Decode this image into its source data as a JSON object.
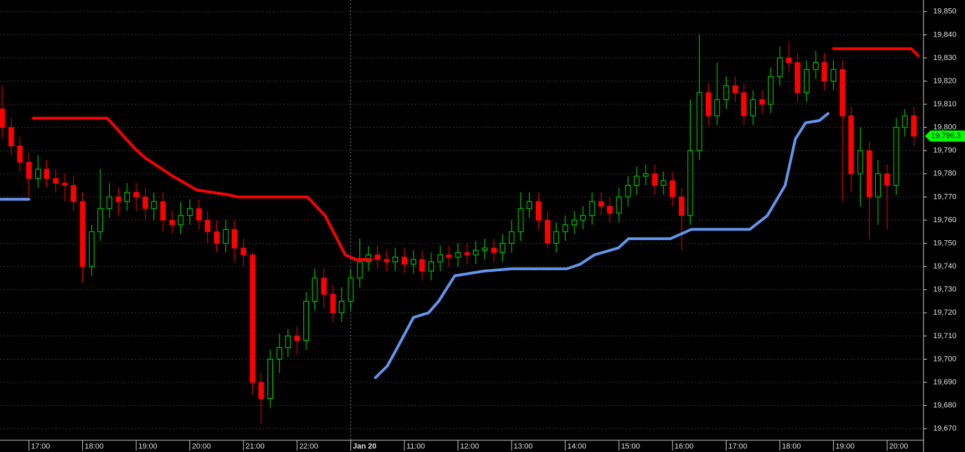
{
  "chart_data": {
    "type": "candlestick",
    "xlim": [
      0.46,
      17.68
    ],
    "ylim": [
      19665,
      19855
    ],
    "xticks": [
      {
        "value": 1,
        "label": "17:00"
      },
      {
        "value": 2,
        "label": "18:00"
      },
      {
        "value": 3,
        "label": "19:00"
      },
      {
        "value": 4,
        "label": "20:00"
      },
      {
        "value": 5,
        "label": "21:00"
      },
      {
        "value": 6,
        "label": "22:00"
      },
      {
        "value": 7,
        "label": "Jan 20"
      },
      {
        "value": 8,
        "label": "11:00"
      },
      {
        "value": 9,
        "label": "12:00"
      },
      {
        "value": 10,
        "label": "13:00"
      },
      {
        "value": 11,
        "label": "14:00"
      },
      {
        "value": 12,
        "label": "15:00"
      },
      {
        "value": 13,
        "label": "16:00"
      },
      {
        "value": 14,
        "label": "17:00"
      },
      {
        "value": 15,
        "label": "18:00"
      },
      {
        "value": 16,
        "label": "19:00"
      },
      {
        "value": 17,
        "label": "20:00"
      }
    ],
    "yticks": [
      {
        "value": 19670,
        "label": "19,670"
      },
      {
        "value": 19680,
        "label": "19,680"
      },
      {
        "value": 19690,
        "label": "19,690"
      },
      {
        "value": 19700,
        "label": "19,700"
      },
      {
        "value": 19710,
        "label": "19,710"
      },
      {
        "value": 19720,
        "label": "19,720"
      },
      {
        "value": 19730,
        "label": "19,730"
      },
      {
        "value": 19740,
        "label": "19,740"
      },
      {
        "value": 19750,
        "label": "19,750"
      },
      {
        "value": 19760,
        "label": "19,760"
      },
      {
        "value": 19770,
        "label": "19,770"
      },
      {
        "value": 19780,
        "label": "19,780"
      },
      {
        "value": 19790,
        "label": "19,790"
      },
      {
        "value": 19800,
        "label": "19,800"
      },
      {
        "value": 19810,
        "label": "19,810"
      },
      {
        "value": 19820,
        "label": "19,820"
      },
      {
        "value": 19830,
        "label": "19,830"
      },
      {
        "value": 19840,
        "label": "19,840"
      },
      {
        "value": 19850,
        "label": "19,850"
      }
    ],
    "grid": true,
    "session_divider": 7,
    "up_color": "#00e000",
    "down_color": "#ff0000",
    "x": [
      0.5,
      0.67,
      0.83,
      1,
      1.17,
      1.33,
      1.5,
      1.67,
      1.83,
      2,
      2.17,
      2.33,
      2.5,
      2.67,
      2.83,
      3,
      3.17,
      3.33,
      3.5,
      3.67,
      3.83,
      4,
      4.17,
      4.33,
      4.5,
      4.67,
      4.83,
      5,
      5.17,
      5.33,
      5.5,
      5.67,
      5.83,
      6,
      6.17,
      6.33,
      6.5,
      6.67,
      6.83,
      7,
      7.17,
      7.33,
      7.5,
      7.67,
      7.83,
      8,
      8.17,
      8.33,
      8.5,
      8.67,
      8.83,
      9,
      9.17,
      9.33,
      9.5,
      9.67,
      9.83,
      10,
      10.17,
      10.33,
      10.5,
      10.67,
      10.83,
      11,
      11.17,
      11.33,
      11.5,
      11.67,
      11.83,
      12,
      12.17,
      12.33,
      12.5,
      12.67,
      12.83,
      13,
      13.17,
      13.33,
      13.5,
      13.67,
      13.83,
      14,
      14.17,
      14.33,
      14.5,
      14.67,
      14.83,
      15,
      15.17,
      15.33,
      15.5,
      15.67,
      15.83,
      16,
      16.17,
      16.33,
      16.5,
      16.67,
      16.83,
      17,
      17.17,
      17.33,
      17.5
    ],
    "open": [
      19808,
      19800,
      19792,
      19785,
      19778,
      19782,
      19778,
      19776,
      19775,
      19768,
      19740,
      19755,
      19765,
      19770,
      19768,
      19772,
      19770,
      19765,
      19768,
      19760,
      19758,
      19762,
      19765,
      19760,
      19755,
      19750,
      19756,
      19748,
      19745,
      19690,
      19683,
      19700,
      19705,
      19710,
      19708,
      19725,
      19735,
      19728,
      19720,
      19725,
      19735,
      19742,
      19745,
      19743,
      19742,
      19744,
      19741,
      19743,
      19738,
      19742,
      19745,
      19744,
      19746,
      19745,
      19747,
      19748,
      19746,
      19750,
      19755,
      19765,
      19768,
      19760,
      19750,
      19755,
      19758,
      19760,
      19762,
      19768,
      19766,
      19763,
      19770,
      19775,
      19779,
      19780,
      19775,
      19777,
      19770,
      19762,
      19790,
      19815,
      19805,
      19812,
      19818,
      19815,
      19805,
      19812,
      19810,
      19822,
      19830,
      19828,
      19815,
      19825,
      19828,
      19820,
      19825,
      19805,
      19780,
      19790,
      19770,
      19780,
      19775,
      19800,
      19805
    ],
    "high": [
      19818,
      19804,
      19796,
      19789,
      19788,
      19786,
      19782,
      19780,
      19779,
      19772,
      19758,
      19782,
      19776,
      19774,
      19776,
      19776,
      19774,
      19772,
      19772,
      19764,
      19768,
      19769,
      19769,
      19764,
      19760,
      19760,
      19760,
      19752,
      19746,
      19694,
      19704,
      19711,
      19713,
      19714,
      19729,
      19739,
      19739,
      19732,
      19731,
      19739,
      19752,
      19749,
      19749,
      19747,
      19748,
      19748,
      19747,
      19747,
      19746,
      19749,
      19749,
      19750,
      19750,
      19751,
      19752,
      19752,
      19754,
      19760,
      19772,
      19772,
      19772,
      19764,
      19759,
      19762,
      19764,
      19766,
      19772,
      19772,
      19770,
      19774,
      19779,
      19783,
      19784,
      19784,
      19781,
      19781,
      19774,
      19812,
      19840,
      19819,
      19828,
      19822,
      19822,
      19819,
      19816,
      19816,
      19826,
      19835,
      19837,
      19832,
      19829,
      19833,
      19832,
      19829,
      19829,
      19809,
      19800,
      19794,
      19786,
      19784,
      19804,
      19808,
      19809
    ],
    "low": [
      19795,
      19788,
      19781,
      19770,
      19774,
      19774,
      19772,
      19768,
      19764,
      19733,
      19736,
      19751,
      19761,
      19762,
      19764,
      19764,
      19760,
      19760,
      19755,
      19754,
      19754,
      19758,
      19756,
      19750,
      19746,
      19746,
      19742,
      19740,
      19685,
      19672,
      19679,
      19694,
      19701,
      19702,
      19704,
      19721,
      19722,
      19716,
      19716,
      19721,
      19731,
      19738,
      19739,
      19738,
      19738,
      19737,
      19737,
      19734,
      19734,
      19738,
      19740,
      19740,
      19741,
      19741,
      19743,
      19742,
      19742,
      19746,
      19751,
      19761,
      19756,
      19748,
      19746,
      19751,
      19754,
      19756,
      19758,
      19762,
      19759,
      19759,
      19766,
      19771,
      19775,
      19771,
      19771,
      19766,
      19747,
      19758,
      19786,
      19801,
      19801,
      19808,
      19811,
      19801,
      19801,
      19806,
      19806,
      19818,
      19824,
      19811,
      19811,
      19821,
      19816,
      19816,
      19768,
      19772,
      19766,
      19752,
      19758,
      19756,
      19771,
      19796,
      19792
    ],
    "close": [
      19800,
      19792,
      19785,
      19778,
      19782,
      19778,
      19776,
      19775,
      19768,
      19740,
      19755,
      19765,
      19770,
      19768,
      19772,
      19770,
      19765,
      19768,
      19760,
      19758,
      19762,
      19765,
      19760,
      19755,
      19750,
      19756,
      19748,
      19745,
      19690,
      19683,
      19700,
      19705,
      19710,
      19708,
      19725,
      19735,
      19728,
      19720,
      19725,
      19735,
      19742,
      19745,
      19743,
      19742,
      19744,
      19741,
      19743,
      19738,
      19742,
      19745,
      19744,
      19746,
      19745,
      19747,
      19748,
      19746,
      19750,
      19755,
      19765,
      19768,
      19760,
      19750,
      19755,
      19758,
      19760,
      19762,
      19768,
      19766,
      19763,
      19770,
      19775,
      19779,
      19780,
      19775,
      19777,
      19770,
      19762,
      19790,
      19815,
      19805,
      19812,
      19818,
      19815,
      19805,
      19812,
      19810,
      19822,
      19830,
      19828,
      19815,
      19825,
      19828,
      19820,
      19825,
      19805,
      19780,
      19790,
      19770,
      19780,
      19775,
      19800,
      19805,
      19796.3
    ],
    "last_price_label": "19,796.3",
    "lines": [
      {
        "color": "#6495ed",
        "x": [
          0.48,
          1.0
        ],
        "values": [
          19769,
          19769
        ]
      },
      {
        "color": "#ff0000",
        "x": [
          1.08,
          2.46,
          2.97,
          3.16,
          3.68,
          4.13,
          4.71,
          4.9,
          6.19,
          6.52,
          6.9,
          7.09,
          7.38
        ],
        "values": [
          19804,
          19804,
          19791,
          19787,
          19779,
          19773,
          19771,
          19770,
          19770,
          19762,
          19745,
          19743,
          19743
        ]
      },
      {
        "color": "#6495ed",
        "x": [
          7.46,
          7.68,
          7.87,
          8.17,
          8.45,
          8.64,
          8.94,
          9.48,
          10.0,
          11.03,
          11.28,
          11.54,
          11.99,
          12.18,
          12.96,
          13.35,
          14.44,
          14.77,
          15.1,
          15.29,
          15.48,
          15.74,
          15.9
        ],
        "values": [
          19692,
          19697,
          19705,
          19718,
          19720,
          19725,
          19736,
          19738,
          19739,
          19739,
          19741,
          19745,
          19748,
          19752,
          19752,
          19756,
          19756,
          19762,
          19775,
          19795,
          19802,
          19803,
          19806
        ]
      },
      {
        "color": "#ff0000",
        "x": [
          16.0,
          17.45,
          17.58
        ],
        "values": [
          19834,
          19834,
          19831
        ]
      }
    ]
  }
}
